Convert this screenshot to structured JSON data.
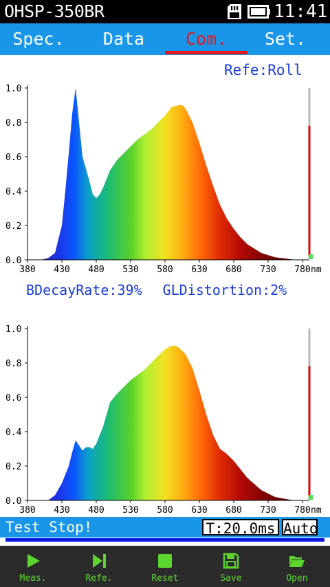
{
  "status_bar": {
    "device": "OHSP-350BR",
    "time": "11:41"
  },
  "tabs": [
    {
      "label": "Spec.",
      "active": false
    },
    {
      "label": "Data",
      "active": false
    },
    {
      "label": "Com.",
      "active": true
    },
    {
      "label": "Set.",
      "active": false
    }
  ],
  "reference_label": "Refe:Roll",
  "metrics": {
    "blue_decay": "BDecayRate:39%",
    "gl_distortion": "GLDistortion:2%"
  },
  "chart_data": [
    {
      "type": "area",
      "xunit": "nm",
      "xlim": [
        380,
        780
      ],
      "ylim": [
        0,
        1.0
      ],
      "x_ticks": [
        "380",
        "430",
        "480",
        "530",
        "580",
        "630",
        "680",
        "730",
        "780"
      ],
      "y_ticks": [
        "0.0",
        "0.2",
        "0.4",
        "0.6",
        "0.8",
        "1.0"
      ],
      "x": [
        380,
        400,
        410,
        420,
        430,
        435,
        440,
        445,
        450,
        455,
        460,
        465,
        470,
        475,
        480,
        485,
        490,
        500,
        510,
        520,
        530,
        540,
        550,
        560,
        570,
        580,
        590,
        600,
        605,
        610,
        620,
        630,
        640,
        650,
        660,
        670,
        680,
        690,
        700,
        720,
        740,
        760,
        770,
        780
      ],
      "y": [
        0,
        0,
        0.01,
        0.04,
        0.2,
        0.4,
        0.62,
        0.85,
        1.0,
        0.8,
        0.6,
        0.53,
        0.46,
        0.38,
        0.36,
        0.38,
        0.42,
        0.52,
        0.58,
        0.62,
        0.66,
        0.7,
        0.73,
        0.76,
        0.8,
        0.84,
        0.89,
        0.9,
        0.9,
        0.88,
        0.8,
        0.68,
        0.55,
        0.43,
        0.32,
        0.24,
        0.18,
        0.13,
        0.09,
        0.04,
        0.015,
        0.005,
        0,
        0
      ],
      "level_marker": 0.78
    },
    {
      "type": "area",
      "xunit": "nm",
      "xlim": [
        380,
        780
      ],
      "ylim": [
        0,
        1.0
      ],
      "x_ticks": [
        "380",
        "430",
        "480",
        "530",
        "580",
        "630",
        "680",
        "730",
        "780"
      ],
      "y_ticks": [
        "0.0",
        "0.2",
        "0.4",
        "0.6",
        "0.8",
        "1.0"
      ],
      "x": [
        380,
        410,
        420,
        430,
        440,
        445,
        450,
        455,
        460,
        465,
        470,
        475,
        480,
        490,
        500,
        510,
        520,
        530,
        540,
        550,
        560,
        570,
        580,
        590,
        595,
        600,
        610,
        620,
        630,
        640,
        650,
        660,
        670,
        680,
        690,
        700,
        720,
        740,
        760,
        770,
        780
      ],
      "y": [
        0,
        0,
        0.03,
        0.1,
        0.2,
        0.28,
        0.35,
        0.32,
        0.29,
        0.31,
        0.31,
        0.3,
        0.33,
        0.43,
        0.57,
        0.62,
        0.66,
        0.7,
        0.73,
        0.76,
        0.8,
        0.84,
        0.88,
        0.9,
        0.9,
        0.89,
        0.85,
        0.77,
        0.64,
        0.5,
        0.38,
        0.3,
        0.27,
        0.23,
        0.18,
        0.13,
        0.06,
        0.02,
        0.005,
        0,
        0
      ],
      "level_marker": 0.78
    }
  ],
  "status_line": {
    "message": "Test Stop!",
    "integration_time": "T:20.0ms",
    "mode": "Auto"
  },
  "bottom_buttons": [
    {
      "label": "Meas.",
      "icon": "play-icon"
    },
    {
      "label": "Refe.",
      "icon": "skip-icon"
    },
    {
      "label": "Reset",
      "icon": "stop-icon"
    },
    {
      "label": "Save",
      "icon": "save-icon"
    },
    {
      "label": "Open",
      "icon": "folder-open-icon"
    }
  ],
  "colors": {
    "accent": "#1a96e8",
    "active_tab": "#e8171a",
    "text_blue": "#1a3bd8",
    "button_green": "#5cd62e"
  }
}
